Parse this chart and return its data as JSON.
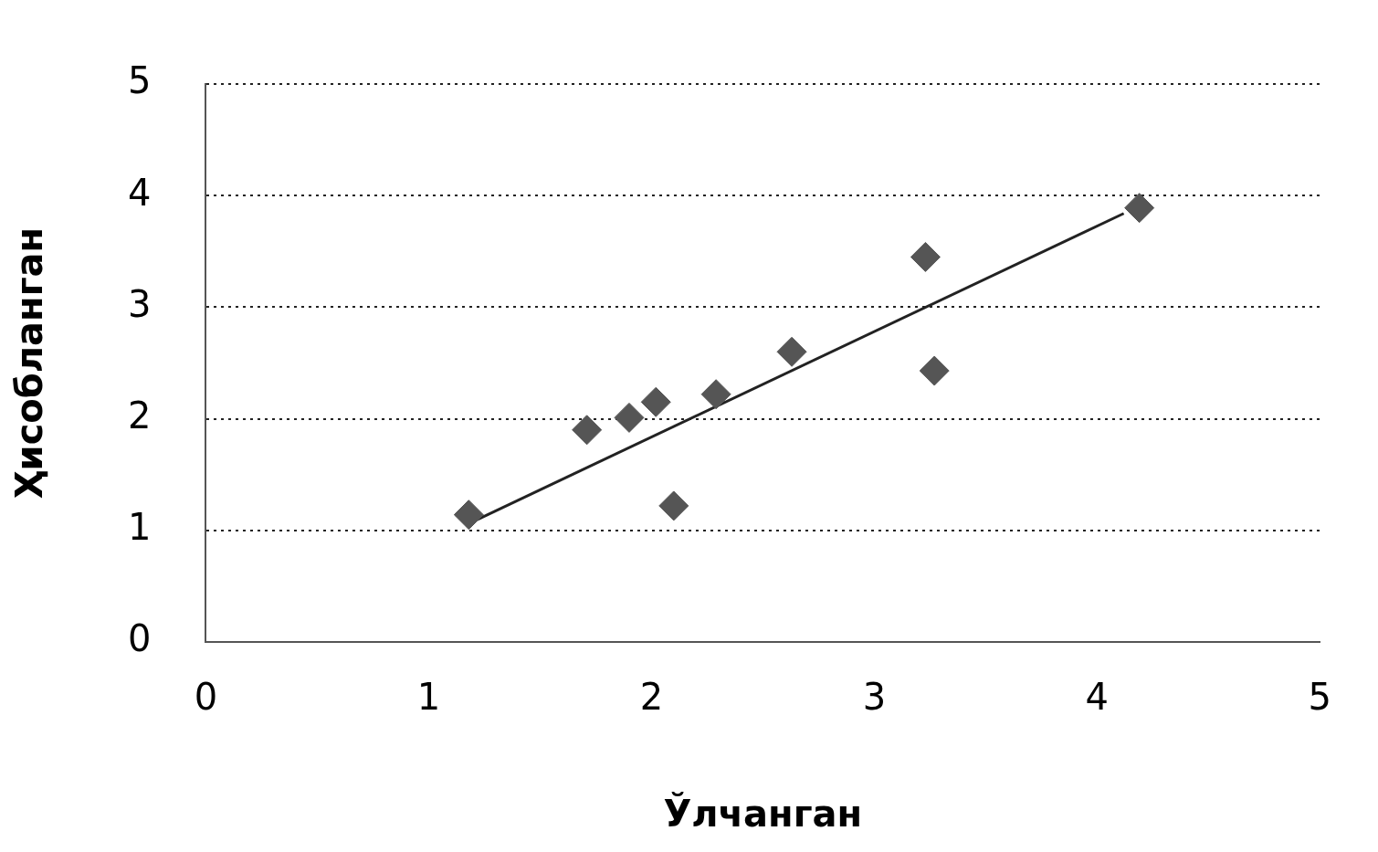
{
  "chart_data": {
    "type": "scatter",
    "xlabel": "Ўлчанган",
    "ylabel": "Ҳисобланган",
    "xlim": [
      0,
      5
    ],
    "ylim": [
      0,
      5
    ],
    "xticks": [
      0,
      1,
      2,
      3,
      4,
      5
    ],
    "yticks": [
      0,
      1,
      2,
      3,
      4,
      5
    ],
    "grid": "y",
    "legend": false,
    "marker": "diamond",
    "series": [
      {
        "type": "scatter",
        "color": "#555555",
        "x": [
          1.18,
          1.71,
          1.9,
          2.02,
          2.1,
          2.29,
          2.63,
          3.23,
          3.27,
          4.19
        ],
        "values": [
          1.14,
          1.9,
          2.01,
          2.15,
          1.22,
          2.22,
          2.6,
          3.45,
          2.43,
          3.89
        ]
      },
      {
        "type": "line",
        "color": "#222222",
        "line_style": "solid",
        "marker": "none",
        "x": [
          1.2,
          4.12
        ],
        "values": [
          1.08,
          3.84
        ]
      }
    ]
  }
}
